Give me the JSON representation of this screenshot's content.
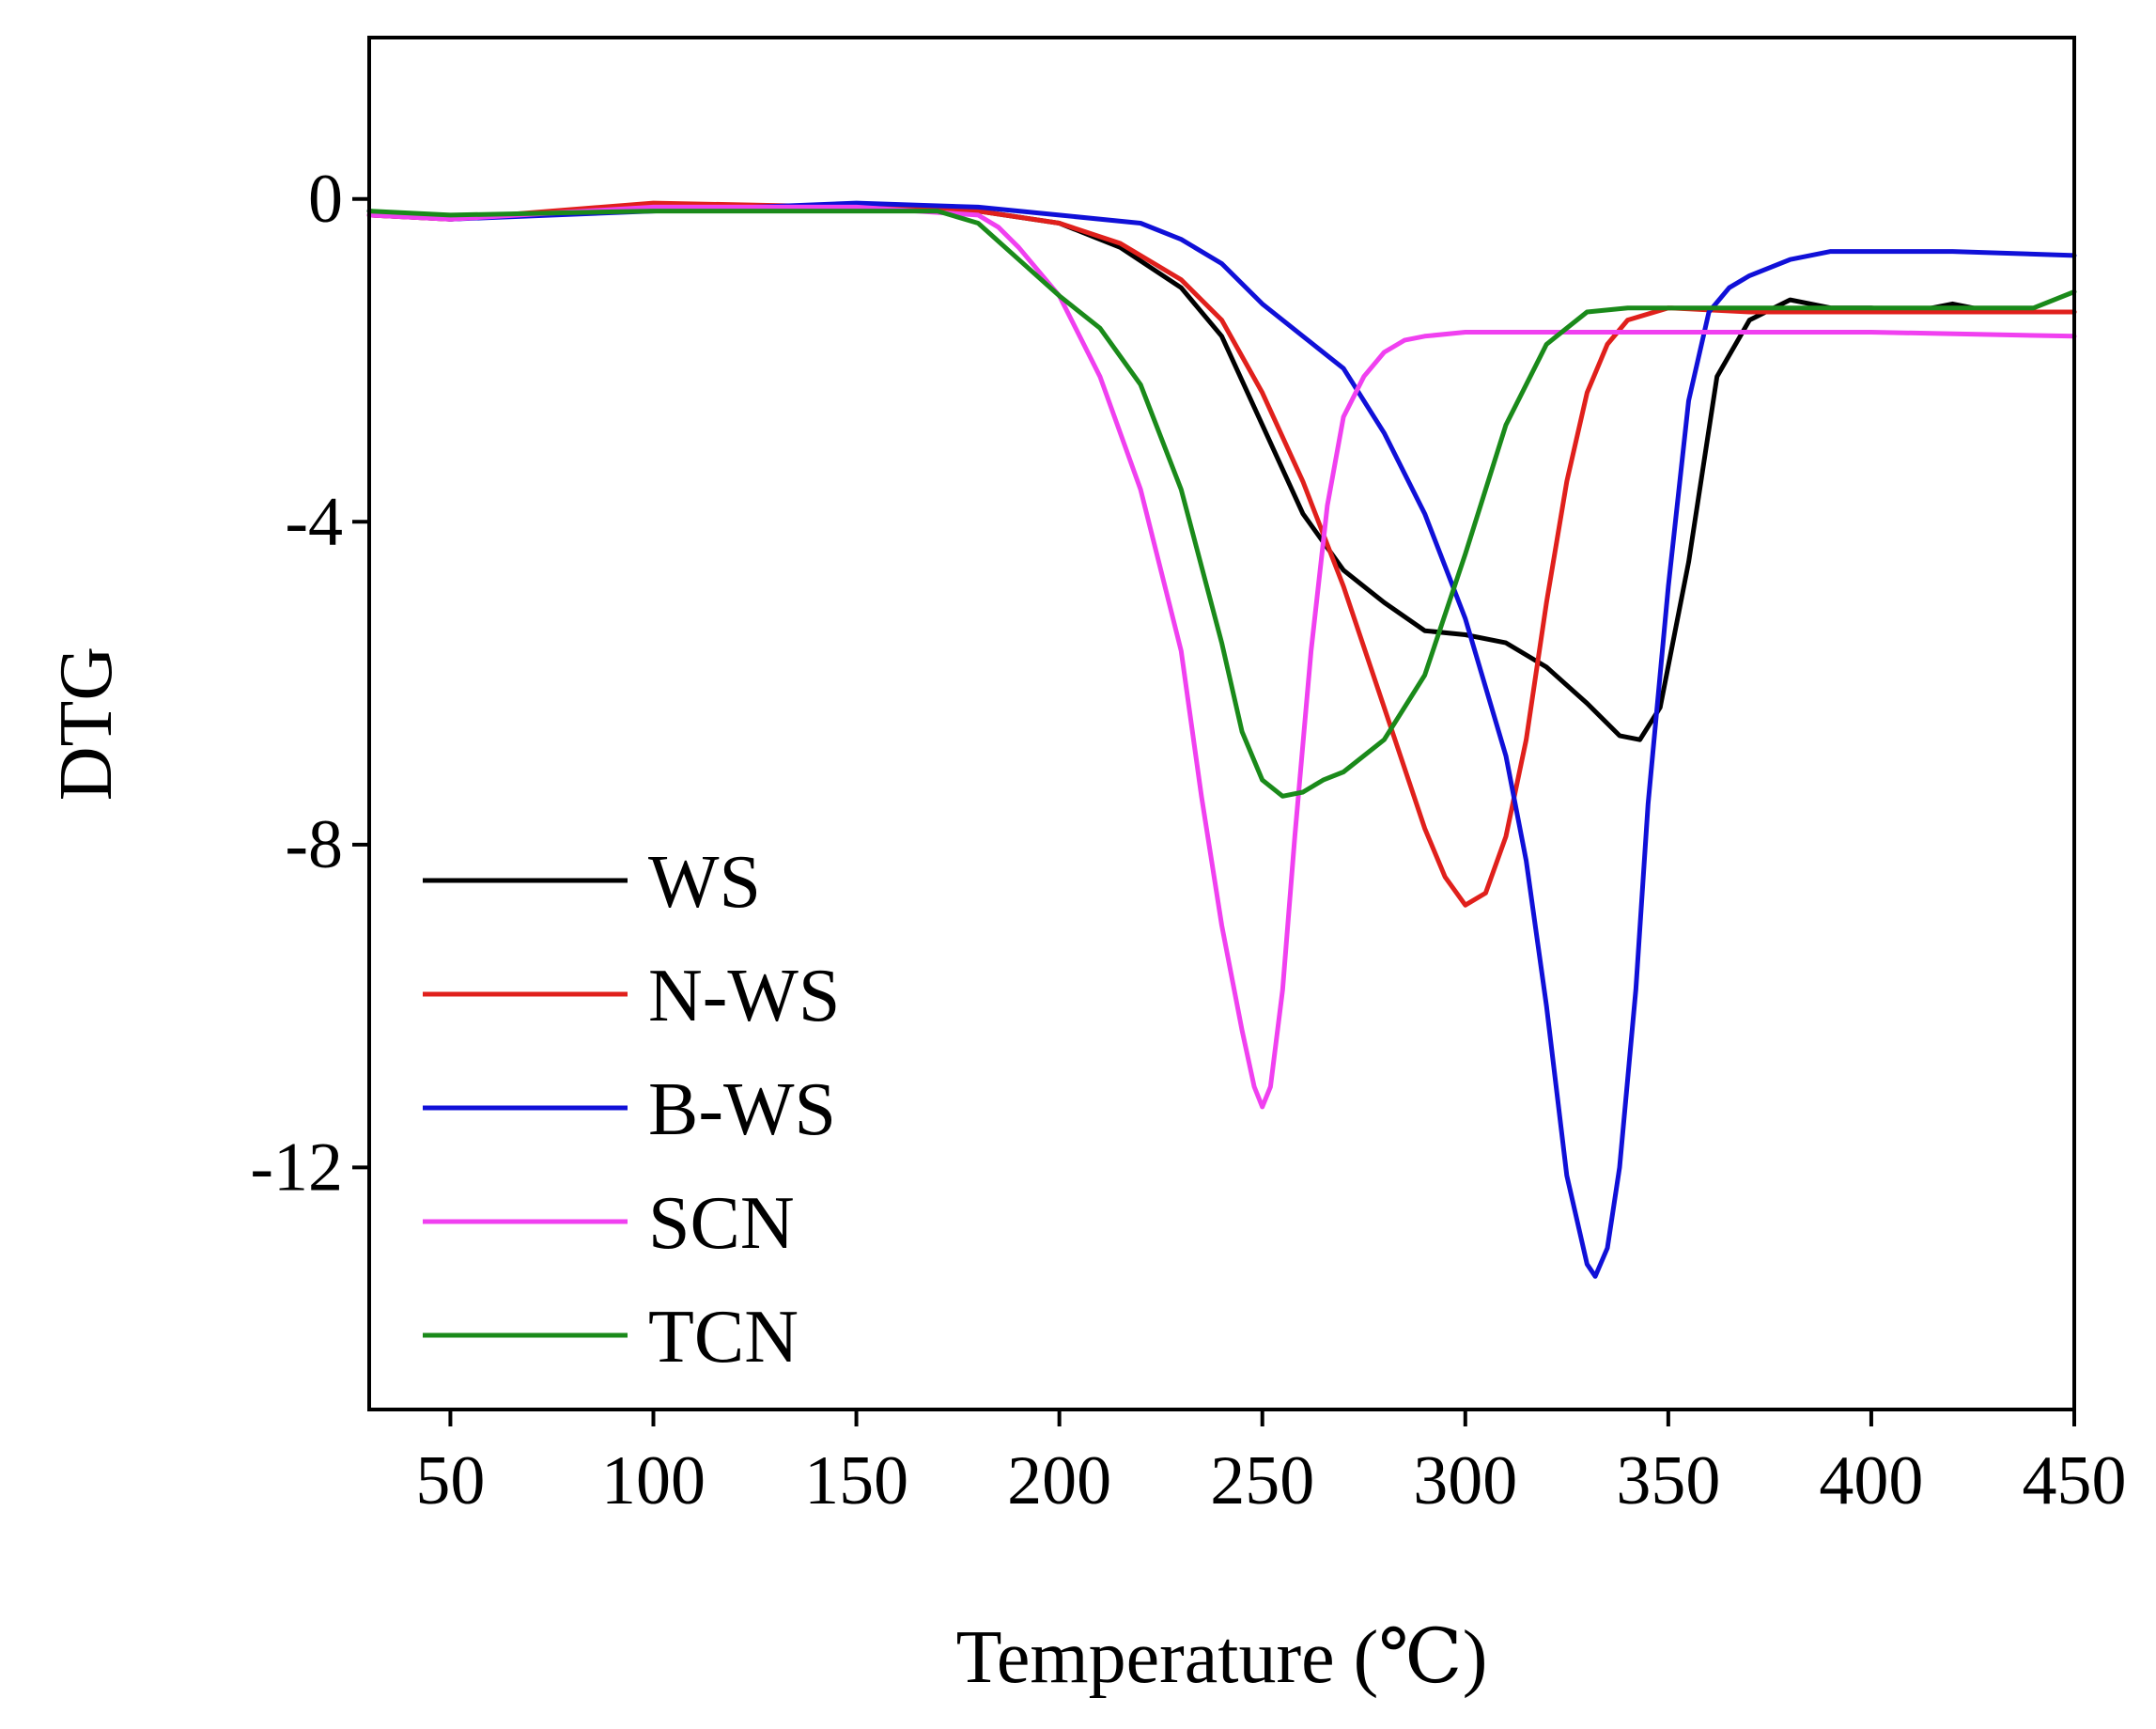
{
  "chart_data": {
    "type": "line",
    "title": "",
    "xlabel": "Temperature (℃)",
    "ylabel": "DTG",
    "xlim": [
      30,
      450
    ],
    "ylim": [
      -15,
      2
    ],
    "xticks": [
      50,
      100,
      150,
      200,
      250,
      300,
      350,
      400,
      450
    ],
    "yticks": [
      0,
      -4,
      -8,
      -12
    ],
    "xtick_labels": [
      "50",
      "100",
      "150",
      "200",
      "250",
      "300",
      "350",
      "400",
      "450"
    ],
    "ytick_labels": [
      "0",
      "-4",
      "-8",
      "-12"
    ],
    "grid": false,
    "legend_position": "bottom-left",
    "series": [
      {
        "name": "WS",
        "color": "#000000",
        "x": [
          30,
          50,
          100,
          150,
          180,
          200,
          215,
          230,
          240,
          250,
          260,
          270,
          280,
          290,
          300,
          310,
          320,
          330,
          338,
          343,
          348,
          355,
          362,
          370,
          380,
          390,
          400,
          410,
          420,
          430,
          440,
          450
        ],
        "y": [
          -0.2,
          -0.25,
          -0.1,
          -0.1,
          -0.15,
          -0.3,
          -0.6,
          -1.1,
          -1.7,
          -2.8,
          -3.9,
          -4.6,
          -5.0,
          -5.35,
          -5.4,
          -5.5,
          -5.8,
          -6.25,
          -6.65,
          -6.7,
          -6.3,
          -4.5,
          -2.2,
          -1.5,
          -1.25,
          -1.35,
          -1.35,
          -1.4,
          -1.3,
          -1.4,
          -1.4,
          -1.4
        ]
      },
      {
        "name": "N-WS",
        "color": "#e0201c",
        "x": [
          30,
          50,
          100,
          150,
          180,
          200,
          215,
          230,
          240,
          250,
          260,
          270,
          280,
          290,
          295,
          300,
          305,
          310,
          315,
          320,
          325,
          330,
          335,
          340,
          350,
          370,
          400,
          450
        ],
        "y": [
          -0.2,
          -0.25,
          -0.05,
          -0.1,
          -0.15,
          -0.3,
          -0.55,
          -1.0,
          -1.5,
          -2.4,
          -3.5,
          -4.8,
          -6.3,
          -7.8,
          -8.4,
          -8.75,
          -8.6,
          -7.9,
          -6.7,
          -5.0,
          -3.5,
          -2.4,
          -1.8,
          -1.5,
          -1.35,
          -1.4,
          -1.4,
          -1.4
        ]
      },
      {
        "name": "B-WS",
        "color": "#1010d8",
        "x": [
          30,
          50,
          100,
          150,
          180,
          200,
          220,
          230,
          240,
          250,
          260,
          270,
          280,
          290,
          300,
          310,
          315,
          320,
          325,
          330,
          332,
          335,
          338,
          342,
          345,
          350,
          355,
          360,
          365,
          370,
          380,
          390,
          400,
          420,
          450
        ],
        "y": [
          -0.15,
          -0.25,
          -0.15,
          -0.05,
          -0.1,
          -0.2,
          -0.3,
          -0.5,
          -0.8,
          -1.3,
          -1.7,
          -2.1,
          -2.9,
          -3.9,
          -5.2,
          -6.9,
          -8.2,
          -10.0,
          -12.1,
          -13.2,
          -13.35,
          -13.0,
          -12.0,
          -9.8,
          -7.5,
          -4.8,
          -2.5,
          -1.4,
          -1.1,
          -0.95,
          -0.75,
          -0.65,
          -0.65,
          -0.65,
          -0.7
        ]
      },
      {
        "name": "SCN",
        "color": "#f040f0",
        "x": [
          30,
          50,
          100,
          150,
          180,
          185,
          190,
          200,
          210,
          220,
          230,
          235,
          240,
          245,
          248,
          250,
          252,
          255,
          258,
          262,
          266,
          270,
          275,
          280,
          285,
          290,
          300,
          350,
          400,
          450
        ],
        "y": [
          -0.2,
          -0.25,
          -0.1,
          -0.1,
          -0.2,
          -0.35,
          -0.6,
          -1.2,
          -2.2,
          -3.6,
          -5.6,
          -7.4,
          -9.0,
          -10.3,
          -11.0,
          -11.25,
          -11.0,
          -9.8,
          -7.9,
          -5.6,
          -3.8,
          -2.7,
          -2.2,
          -1.9,
          -1.75,
          -1.7,
          -1.65,
          -1.65,
          -1.65,
          -1.7
        ]
      },
      {
        "name": "TCN",
        "color": "#1a8a1a",
        "x": [
          30,
          50,
          100,
          150,
          170,
          180,
          190,
          200,
          210,
          220,
          230,
          240,
          245,
          250,
          255,
          260,
          265,
          270,
          280,
          290,
          300,
          310,
          320,
          330,
          340,
          350,
          400,
          440,
          450
        ],
        "y": [
          -0.15,
          -0.2,
          -0.15,
          -0.15,
          -0.15,
          -0.3,
          -0.75,
          -1.2,
          -1.6,
          -2.3,
          -3.6,
          -5.5,
          -6.6,
          -7.2,
          -7.4,
          -7.35,
          -7.2,
          -7.1,
          -6.7,
          -5.9,
          -4.4,
          -2.8,
          -1.8,
          -1.4,
          -1.35,
          -1.35,
          -1.35,
          -1.35,
          -1.15
        ]
      }
    ]
  }
}
